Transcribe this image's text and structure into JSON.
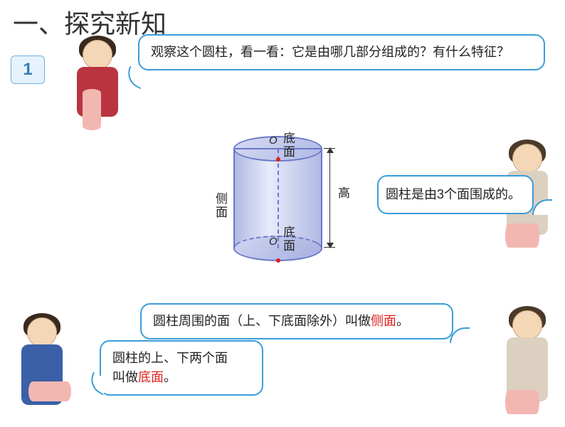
{
  "title": "一、探究新知",
  "badge_number": "1",
  "speech": {
    "top_question": "观察这个圆柱，看一看：它是由哪几部分组成的？有什么特征？",
    "right_fact": "圆柱是由3个面围成的。",
    "mid1_prefix": "圆柱周围的面（上、下底面除外）叫做",
    "mid1_keyword": "侧面",
    "mid1_suffix": "。",
    "mid2_line1": "圆柱的上、下两个面",
    "mid2_prefix": "叫做",
    "mid2_keyword": "底面",
    "mid2_suffix": "。"
  },
  "cylinder": {
    "label_top": "底面",
    "label_side": "侧面",
    "label_bottom": "底面",
    "label_height": "高",
    "center_symbol": "O",
    "fill_colors": [
      "#d6daf3",
      "#b0b9e4",
      "#e8ebfa",
      "#a6afe0"
    ],
    "border_color": "#6a78c8",
    "dot_color": "#e02020"
  },
  "styling": {
    "bubble_border_color": "#3a9dd9",
    "keyword_color": "#e02020",
    "title_color": "#333333",
    "body_font_size_pt": 14,
    "title_font_size_pt": 27
  }
}
